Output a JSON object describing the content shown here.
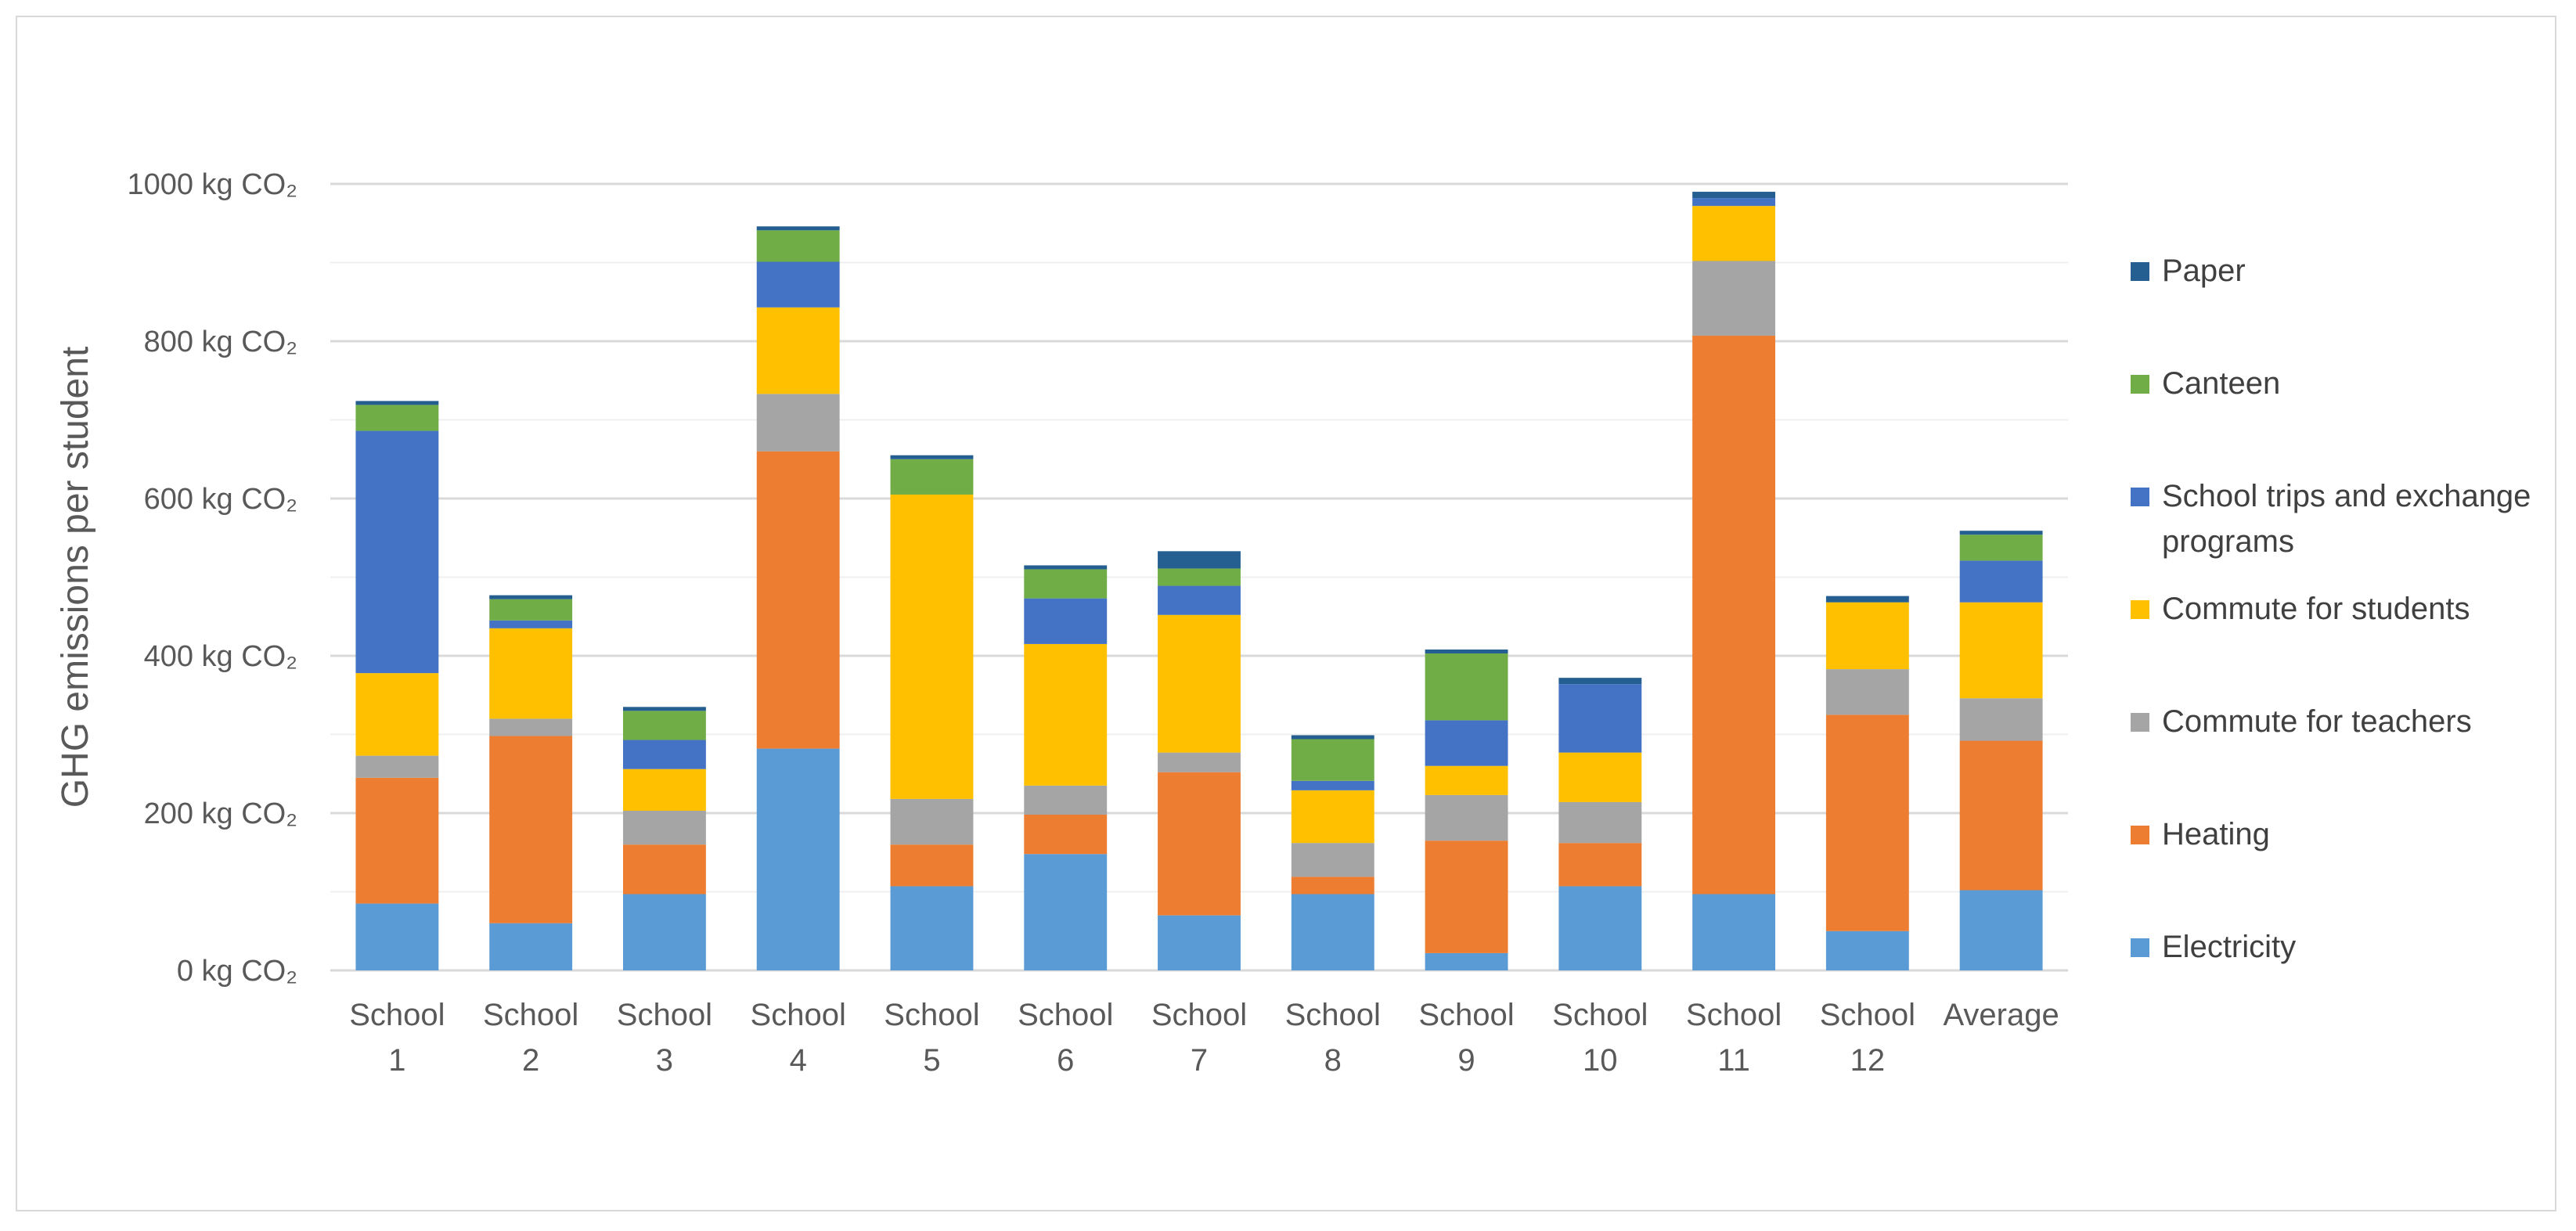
{
  "chart_data": {
    "type": "bar",
    "stacked": true,
    "title": "",
    "xlabel": "",
    "ylabel": "GHG emissions per student",
    "ylim": [
      0,
      1000
    ],
    "y_ticks": [
      0,
      200,
      400,
      600,
      800,
      1000
    ],
    "y_tick_labels": [
      "0 kg CO₂",
      "200 kg CO₂",
      "400 kg CO₂",
      "600 kg CO₂",
      "800 kg CO₂",
      "1000 kg CO₂"
    ],
    "grid": true,
    "legend_position": "right",
    "categories": [
      [
        "School",
        "1"
      ],
      [
        "School",
        "2"
      ],
      [
        "School",
        "3"
      ],
      [
        "School",
        "4"
      ],
      [
        "School",
        "5"
      ],
      [
        "School",
        "6"
      ],
      [
        "School",
        "7"
      ],
      [
        "School",
        "8"
      ],
      [
        "School",
        "9"
      ],
      [
        "School",
        "10"
      ],
      [
        "School",
        "11"
      ],
      [
        "School",
        "12"
      ],
      [
        "Average",
        ""
      ]
    ],
    "series": [
      {
        "name": "Electricity",
        "color": "#5b9bd5",
        "values": [
          85,
          60,
          97,
          282,
          107,
          148,
          70,
          97,
          22,
          107,
          97,
          50,
          102
        ]
      },
      {
        "name": "Heating",
        "color": "#ed7d31",
        "values": [
          160,
          238,
          63,
          378,
          53,
          50,
          182,
          22,
          143,
          55,
          710,
          275,
          190
        ]
      },
      {
        "name": "Commute for teachers",
        "color": "#a5a5a5",
        "values": [
          28,
          22,
          43,
          73,
          58,
          37,
          25,
          43,
          58,
          52,
          95,
          58,
          54
        ]
      },
      {
        "name": "Commute for students",
        "color": "#ffc000",
        "values": [
          105,
          115,
          53,
          110,
          387,
          180,
          175,
          67,
          37,
          63,
          70,
          85,
          122
        ]
      },
      {
        "name": "School trips and exchange programs",
        "color": "#4472c4",
        "values": [
          308,
          10,
          37,
          58,
          0,
          58,
          37,
          12,
          58,
          87,
          10,
          0,
          53
        ]
      },
      {
        "name": "Canteen",
        "color": "#70ad47",
        "values": [
          33,
          27,
          37,
          40,
          45,
          37,
          22,
          53,
          85,
          0,
          0,
          0,
          33
        ]
      },
      {
        "name": "Paper",
        "color": "#255e91",
        "values": [
          5,
          5,
          5,
          5,
          5,
          5,
          22,
          5,
          5,
          8,
          8,
          8,
          5
        ]
      }
    ],
    "legend": [
      {
        "lines": [
          "Paper"
        ],
        "color": "#255e91"
      },
      {
        "lines": [
          "Canteen"
        ],
        "color": "#70ad47"
      },
      {
        "lines": [
          "School trips and exchange",
          "programs"
        ],
        "color": "#4472c4"
      },
      {
        "lines": [
          "Commute for students"
        ],
        "color": "#ffc000"
      },
      {
        "lines": [
          "Commute for teachers"
        ],
        "color": "#a5a5a5"
      },
      {
        "lines": [
          "Heating"
        ],
        "color": "#ed7d31"
      },
      {
        "lines": [
          "Electricity"
        ],
        "color": "#5b9bd5"
      }
    ]
  }
}
